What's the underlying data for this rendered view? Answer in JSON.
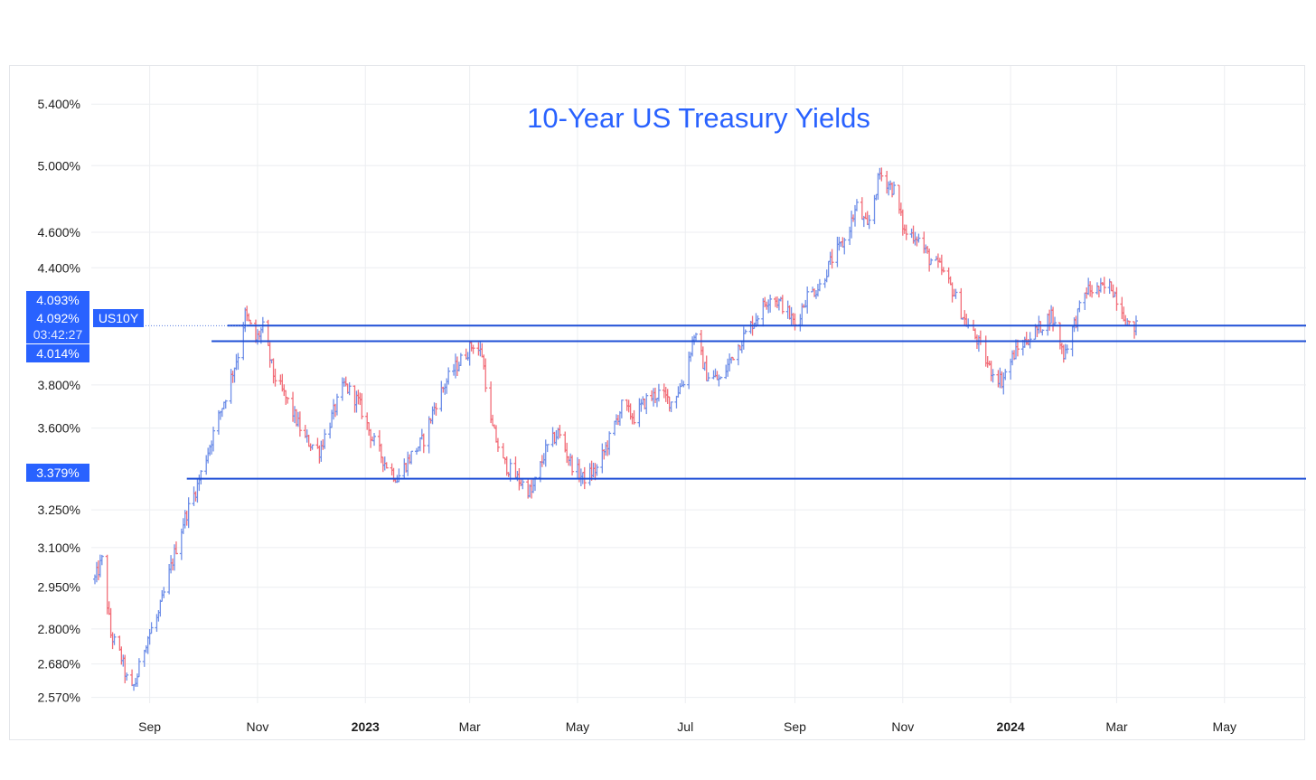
{
  "chart_data": {
    "type": "ohlc",
    "title": "10-Year US Treasury Yields",
    "symbol_tag": "US10Y",
    "countdown": "03:42:27",
    "colors": {
      "up": "#6f8fe8",
      "down": "#f26d78",
      "line": "#1f4fd6",
      "tag": "#2962ff",
      "title": "#2962ff"
    },
    "y_ticks": [
      "5.400%",
      "5.000%",
      "4.600%",
      "4.400%",
      "3.800%",
      "3.600%",
      "3.250%",
      "3.100%",
      "2.950%",
      "2.800%",
      "2.680%",
      "2.570%"
    ],
    "y_tick_values": [
      5.4,
      5.0,
      4.6,
      4.4,
      3.8,
      3.6,
      3.25,
      3.1,
      2.95,
      2.8,
      2.68,
      2.57
    ],
    "x_ticks": [
      {
        "label": "Sep",
        "date": "2022-09-01",
        "bold": false
      },
      {
        "label": "Nov",
        "date": "2022-11-01",
        "bold": false
      },
      {
        "label": "2023",
        "date": "2023-01-01",
        "bold": true
      },
      {
        "label": "Mar",
        "date": "2023-03-01",
        "bold": false
      },
      {
        "label": "May",
        "date": "2023-05-01",
        "bold": false
      },
      {
        "label": "Jul",
        "date": "2023-07-01",
        "bold": false
      },
      {
        "label": "Sep",
        "date": "2023-09-01",
        "bold": false
      },
      {
        "label": "Nov",
        "date": "2023-11-01",
        "bold": false
      },
      {
        "label": "2024",
        "date": "2024-01-01",
        "bold": true
      },
      {
        "label": "Mar",
        "date": "2024-03-01",
        "bold": false
      },
      {
        "label": "May",
        "date": "2024-05-01",
        "bold": false
      }
    ],
    "price_tags": [
      {
        "text": "4.093%",
        "value": 4.093
      },
      {
        "text": "4.092%",
        "value": 4.092
      },
      {
        "text": "4.014%",
        "value": 4.014
      },
      {
        "text": "3.379%",
        "value": 3.379
      }
    ],
    "horizontal_lines": [
      {
        "value": 4.093,
        "from": "2022-10-15"
      },
      {
        "value": 4.014,
        "from": "2022-10-06"
      },
      {
        "value": 3.379,
        "from": "2022-09-22"
      }
    ],
    "ylim": [
      2.52,
      5.55
    ],
    "scale": "log",
    "x_range": [
      "2022-08-01",
      "2024-06-10"
    ],
    "grid": true,
    "path_anchors": [
      [
        "2022-08-01",
        2.98
      ],
      [
        "2022-08-05",
        3.05
      ],
      [
        "2022-08-10",
        2.78
      ],
      [
        "2022-08-16",
        2.7
      ],
      [
        "2022-08-21",
        2.58
      ],
      [
        "2022-08-24",
        2.62
      ],
      [
        "2022-08-30",
        2.76
      ],
      [
        "2022-09-06",
        2.85
      ],
      [
        "2022-09-12",
        3.0
      ],
      [
        "2022-09-20",
        3.2
      ],
      [
        "2022-09-28",
        3.35
      ],
      [
        "2022-10-06",
        3.55
      ],
      [
        "2022-10-14",
        3.75
      ],
      [
        "2022-10-21",
        3.95
      ],
      [
        "2022-10-25",
        4.15
      ],
      [
        "2022-10-31",
        4.02
      ],
      [
        "2022-11-04",
        4.08
      ],
      [
        "2022-11-10",
        3.85
      ],
      [
        "2022-11-18",
        3.72
      ],
      [
        "2022-11-28",
        3.55
      ],
      [
        "2022-12-06",
        3.5
      ],
      [
        "2022-12-13",
        3.65
      ],
      [
        "2022-12-20",
        3.8
      ],
      [
        "2022-12-28",
        3.72
      ],
      [
        "2023-01-05",
        3.55
      ],
      [
        "2023-01-12",
        3.45
      ],
      [
        "2023-01-19",
        3.38
      ],
      [
        "2023-01-27",
        3.48
      ],
      [
        "2023-02-03",
        3.55
      ],
      [
        "2023-02-10",
        3.72
      ],
      [
        "2023-02-18",
        3.85
      ],
      [
        "2023-02-24",
        3.92
      ],
      [
        "2023-03-03",
        4.0
      ],
      [
        "2023-03-08",
        3.95
      ],
      [
        "2023-03-13",
        3.62
      ],
      [
        "2023-03-20",
        3.45
      ],
      [
        "2023-03-28",
        3.38
      ],
      [
        "2023-04-05",
        3.32
      ],
      [
        "2023-04-13",
        3.5
      ],
      [
        "2023-04-20",
        3.58
      ],
      [
        "2023-04-27",
        3.45
      ],
      [
        "2023-05-04",
        3.38
      ],
      [
        "2023-05-12",
        3.42
      ],
      [
        "2023-05-19",
        3.55
      ],
      [
        "2023-05-26",
        3.7
      ],
      [
        "2023-06-02",
        3.65
      ],
      [
        "2023-06-09",
        3.73
      ],
      [
        "2023-06-16",
        3.76
      ],
      [
        "2023-06-23",
        3.72
      ],
      [
        "2023-06-30",
        3.82
      ],
      [
        "2023-07-06",
        4.05
      ],
      [
        "2023-07-13",
        3.85
      ],
      [
        "2023-07-21",
        3.82
      ],
      [
        "2023-07-28",
        3.95
      ],
      [
        "2023-08-04",
        4.05
      ],
      [
        "2023-08-11",
        4.15
      ],
      [
        "2023-08-18",
        4.25
      ],
      [
        "2023-08-25",
        4.2
      ],
      [
        "2023-09-01",
        4.1
      ],
      [
        "2023-09-08",
        4.25
      ],
      [
        "2023-09-15",
        4.3
      ],
      [
        "2023-09-22",
        4.45
      ],
      [
        "2023-09-29",
        4.55
      ],
      [
        "2023-10-06",
        4.75
      ],
      [
        "2023-10-12",
        4.62
      ],
      [
        "2023-10-19",
        4.95
      ],
      [
        "2023-10-23",
        4.9
      ],
      [
        "2023-10-27",
        4.85
      ],
      [
        "2023-11-02",
        4.6
      ],
      [
        "2023-11-09",
        4.58
      ],
      [
        "2023-11-16",
        4.45
      ],
      [
        "2023-11-22",
        4.4
      ],
      [
        "2023-11-29",
        4.28
      ],
      [
        "2023-12-06",
        4.12
      ],
      [
        "2023-12-13",
        4.02
      ],
      [
        "2023-12-20",
        3.88
      ],
      [
        "2023-12-27",
        3.82
      ],
      [
        "2024-01-03",
        3.95
      ],
      [
        "2024-01-10",
        4.02
      ],
      [
        "2024-01-17",
        4.08
      ],
      [
        "2024-01-24",
        4.15
      ],
      [
        "2024-01-31",
        3.95
      ],
      [
        "2024-02-06",
        4.1
      ],
      [
        "2024-02-13",
        4.28
      ],
      [
        "2024-02-20",
        4.28
      ],
      [
        "2024-02-27",
        4.3
      ],
      [
        "2024-03-04",
        4.18
      ],
      [
        "2024-03-08",
        4.08
      ],
      [
        "2024-03-12",
        4.09
      ]
    ]
  }
}
